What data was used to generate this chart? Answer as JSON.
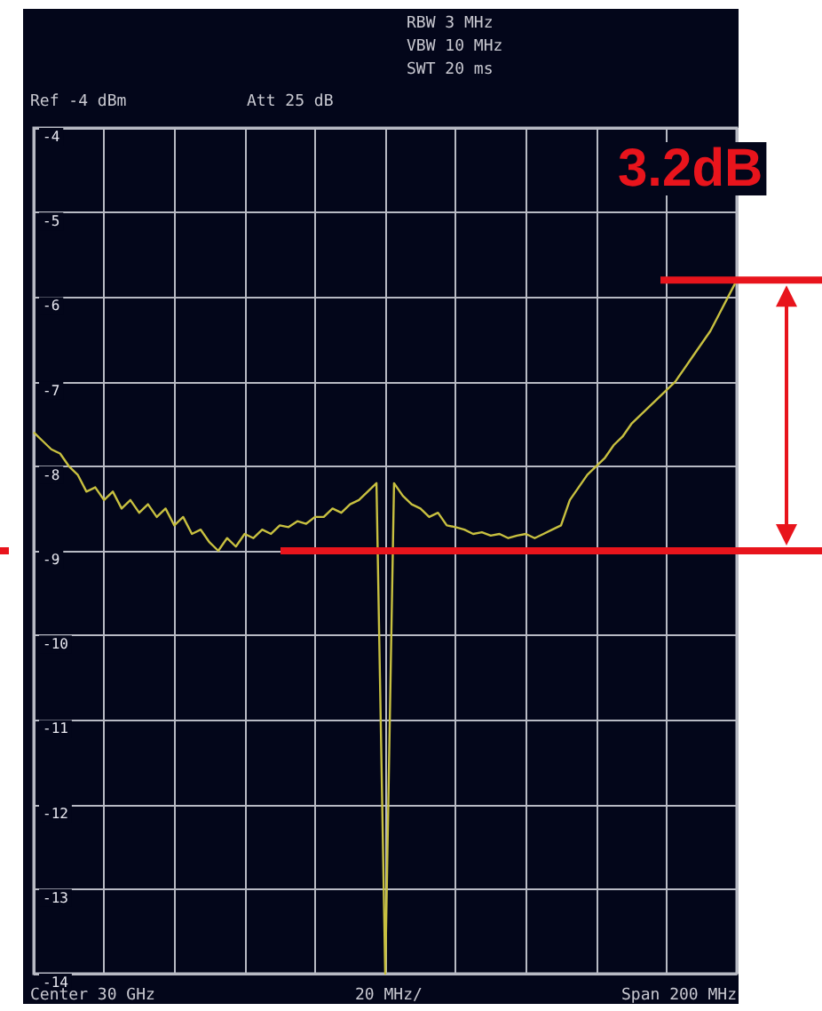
{
  "chart_data": {
    "type": "line",
    "categories": [
      null,
      null,
      null,
      null,
      null,
      null,
      null,
      null,
      null,
      null,
      null,
      null,
      null,
      null,
      null,
      null,
      null,
      null,
      null,
      null,
      null,
      null,
      null,
      null,
      null,
      null,
      null,
      null,
      null,
      null,
      null,
      null,
      null,
      null,
      null,
      null,
      null,
      null,
      null,
      null,
      null,
      null,
      null,
      null,
      null,
      null,
      null,
      null,
      null,
      null,
      null,
      null,
      null,
      null,
      null,
      null,
      null,
      null,
      null,
      null,
      null,
      null,
      null,
      null,
      null,
      null,
      null,
      null,
      null,
      null,
      null,
      null,
      null,
      null,
      null,
      null,
      null,
      null,
      null,
      null,
      null
    ],
    "series": [
      {
        "color": "#c8c040",
        "values": [
          -7.6,
          -7.7,
          -7.8,
          -7.85,
          -8.0,
          -8.1,
          -8.3,
          -8.25,
          -8.4,
          -8.3,
          -8.5,
          -8.4,
          -8.55,
          -8.45,
          -8.6,
          -8.5,
          -8.7,
          -8.6,
          -8.8,
          -8.75,
          -8.9,
          -9.0,
          -8.85,
          -8.95,
          -8.8,
          -8.85,
          -8.75,
          -8.8,
          -8.7,
          -8.72,
          -8.65,
          -8.68,
          -8.6,
          -8.6,
          -8.5,
          -8.55,
          -8.45,
          -8.4,
          -8.3,
          -8.2,
          -14,
          -8.2,
          -8.35,
          -8.45,
          -8.5,
          -8.6,
          -8.55,
          -8.7,
          -8.72,
          -8.75,
          -8.8,
          -8.78,
          -8.82,
          -8.8,
          -8.85,
          -8.82,
          -8.8,
          -8.85,
          -8.8,
          -8.75,
          -8.7,
          -8.4,
          -8.25,
          -8.1,
          -8.0,
          -7.9,
          -7.75,
          -7.65,
          -7.5,
          -7.4,
          -7.3,
          -7.2,
          -7.1,
          -7.0,
          -6.85,
          -6.7,
          -6.55,
          -6.4,
          -6.2,
          -6.0,
          -5.8
        ]
      }
    ],
    "ylim": [
      -14,
      -4
    ],
    "yticks": [
      -14,
      -13,
      -12,
      -11,
      -10,
      -9,
      -8,
      -7,
      -6,
      -5,
      -4
    ],
    "grid": true,
    "marker": "none",
    "ref_lines": [
      {
        "axis": "y",
        "value": -9,
        "color": "#e8141c"
      },
      {
        "axis": "y",
        "value": -5.8,
        "color": "#e8141c"
      }
    ],
    "annotations": [
      "RBW 3 MHz",
      "VBW 10 MHz",
      "SWT 20 ms",
      "Ref -4 dBm",
      "Att 25 dB",
      "Center 30 GHz",
      "20 MHz/",
      "Span 200 MHz",
      "3.2dB"
    ]
  }
}
